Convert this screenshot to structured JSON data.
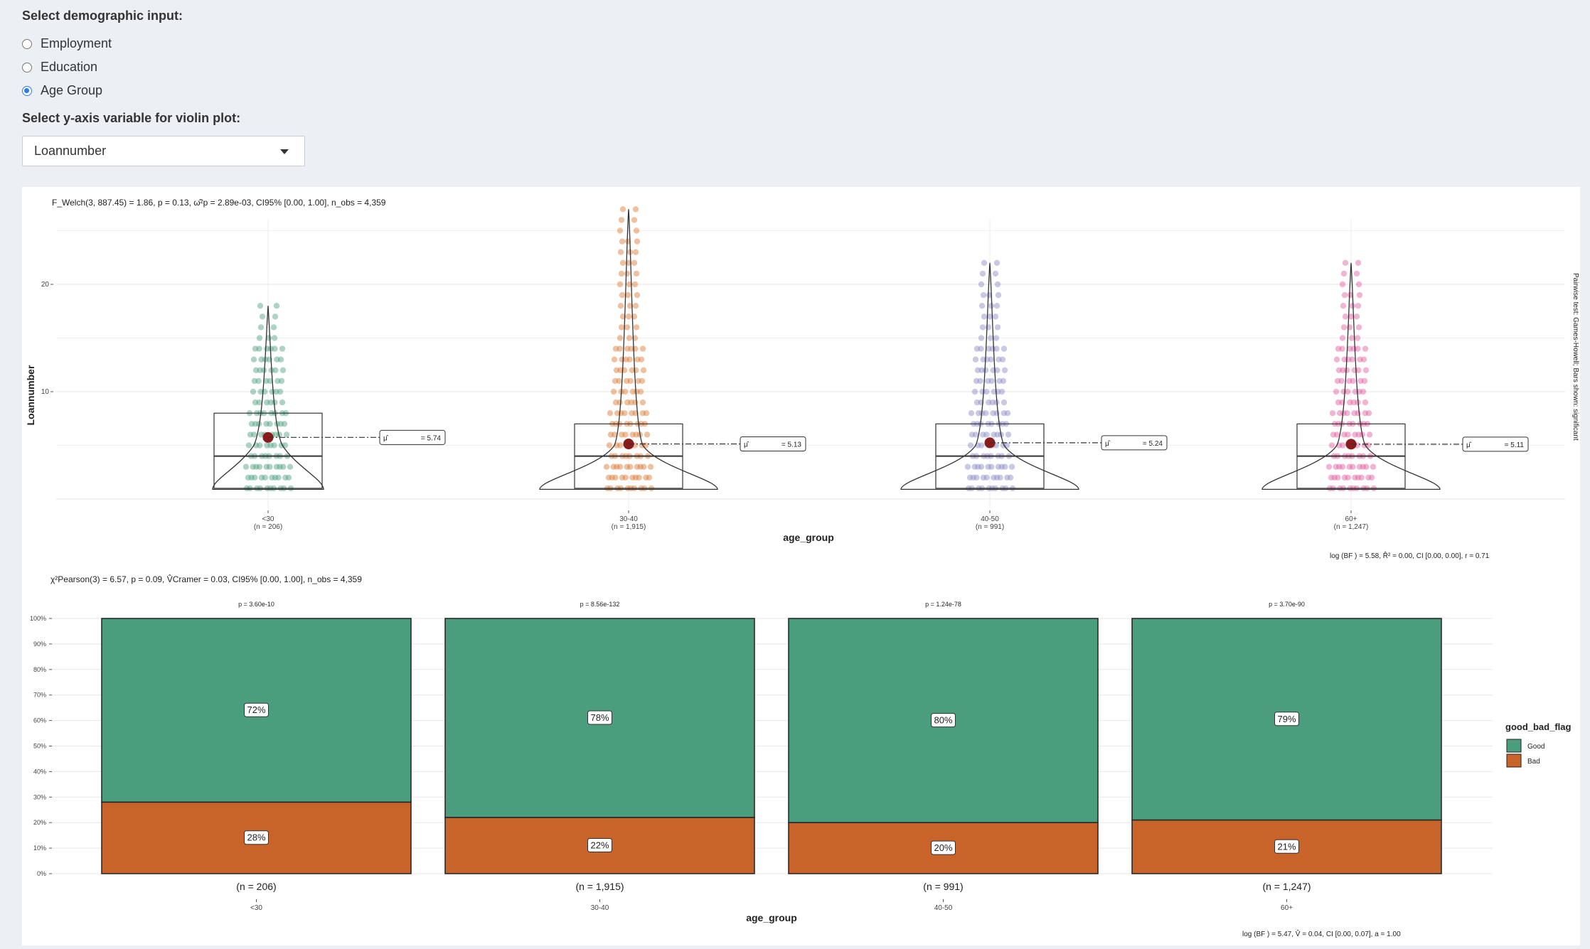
{
  "controls": {
    "demographic_label": "Select demographic input:",
    "options": [
      "Employment",
      "Education",
      "Age Group"
    ],
    "selected_option": "Age Group",
    "yaxis_label": "Select y-axis variable for violin plot:",
    "yaxis_value": "Loannumber"
  },
  "colors": {
    "page_bg": "#ecf0f5",
    "good": "#4a9d7d",
    "bad": "#c8632a",
    "group_colors": [
      "#4a9d7d",
      "#d9752f",
      "#8a88c4",
      "#e0589e"
    ],
    "mean_point": "#8b1a1a"
  },
  "violin_plot": {
    "stats_subtitle": "F_Welch(3, 887.45) = 1.86, p = 0.13, ω̂²p = 2.89e-03, CI95% [0.00, 1.00], n_obs = 4,359",
    "ylabel": "Loannumber",
    "xlabel": "age_group",
    "right_caption": "Pairwise test: Games-Howell; Bars shown: significant",
    "bottom_caption": "log   (BF   ) = 5.58, R̂²       = 0.00, CI           [0.00, 0.00], r        = 0.71"
  },
  "mosaic_plot": {
    "stats_subtitle": "χ²Pearson(3) = 6.57, p = 0.09, V̂Cramer = 0.03, CI95% [0.00, 1.00], n_obs = 4,359",
    "xlabel": "age_group",
    "legend_title": "good_bad_flag",
    "legend_items": [
      "Good",
      "Bad"
    ],
    "bottom_caption": "log   (BF   ) = 5.47, V̂      = 0.04, CI       [0.00, 0.07], a        = 1.00"
  },
  "chart_data": [
    {
      "type": "violin",
      "title": "",
      "xlabel": "age_group",
      "ylabel": "Loannumber",
      "yticks": [
        10,
        20
      ],
      "ylim": [
        0,
        28
      ],
      "categories": [
        "<30",
        "30-40",
        "40-50",
        "60+"
      ],
      "n_labels": [
        "(n = 206)",
        "(n = 1,915)",
        "(n = 991)",
        "(n = 1,247)"
      ],
      "means": [
        5.74,
        5.13,
        5.24,
        5.11
      ],
      "mean_labels": [
        "= 5.74",
        "= 5.13",
        "= 5.24",
        "= 5.11"
      ],
      "mean_symbol": "μ̂",
      "medians": [
        4,
        4,
        4,
        4
      ],
      "q1": [
        1,
        1,
        1,
        1
      ],
      "q3": [
        8,
        7,
        7,
        7
      ],
      "max": [
        18,
        27,
        22,
        22
      ]
    },
    {
      "type": "bar",
      "stacked": true,
      "xlabel": "age_group",
      "categories": [
        "<30",
        "30-40",
        "40-50",
        "60+"
      ],
      "n_labels": [
        "(n = 206)",
        "(n = 1,915)",
        "(n = 991)",
        "(n = 1,247)"
      ],
      "p_labels": [
        "p = 3.60e-10",
        "p = 8.56e-132",
        "p = 1.24e-78",
        "p = 3.70e-90"
      ],
      "yticks": [
        "0%",
        "10%",
        "20%",
        "30%",
        "40%",
        "50%",
        "60%",
        "70%",
        "80%",
        "90%",
        "100%"
      ],
      "series": [
        {
          "name": "Good",
          "values": [
            72,
            78,
            80,
            79
          ]
        },
        {
          "name": "Bad",
          "values": [
            28,
            22,
            20,
            21
          ]
        }
      ]
    }
  ]
}
